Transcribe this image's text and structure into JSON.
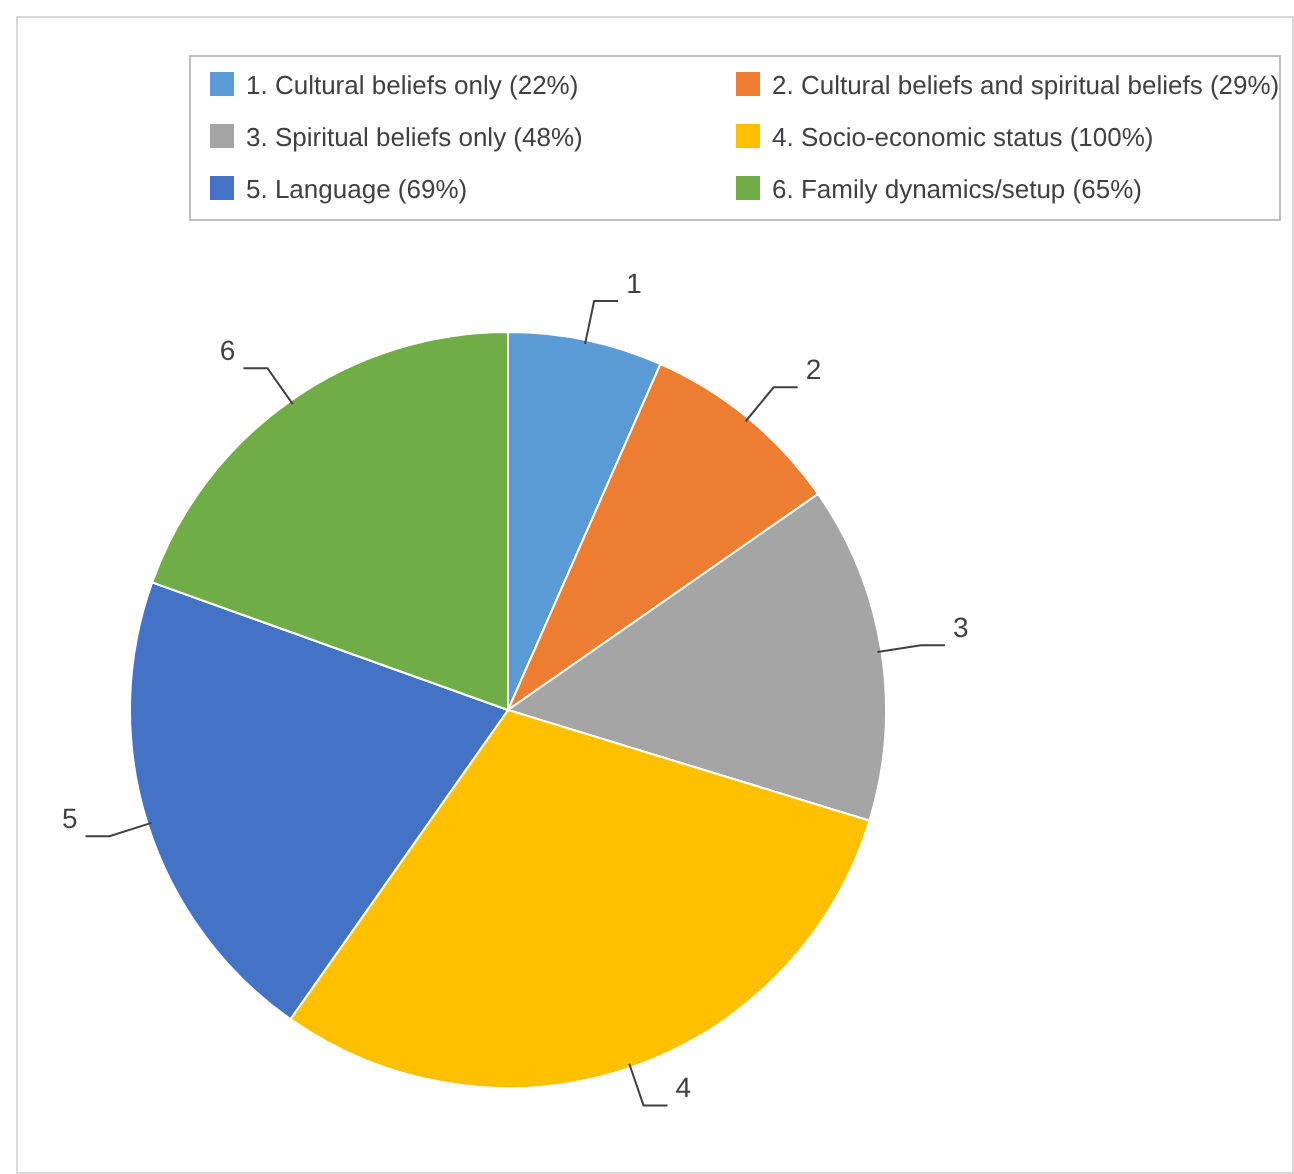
{
  "chart_data": {
    "type": "pie",
    "categories": [
      "1. Cultural beliefs only (22%)",
      "2. Cultural beliefs and spiritual beliefs (29%)",
      "3. Spiritual beliefs only (48%)",
      "4. Socio-economic status (100%)",
      "5. Language (69%)",
      "6. Family dynamics/setup (65%)"
    ],
    "values": [
      22,
      29,
      48,
      100,
      69,
      65
    ],
    "colors": [
      "#5b9bd5",
      "#ed7d31",
      "#a5a5a5",
      "#ffc000",
      "#4472c4",
      "#70ad47"
    ],
    "annotations": [
      "1",
      "2",
      "3",
      "4",
      "5",
      "6"
    ],
    "legend": "top"
  }
}
